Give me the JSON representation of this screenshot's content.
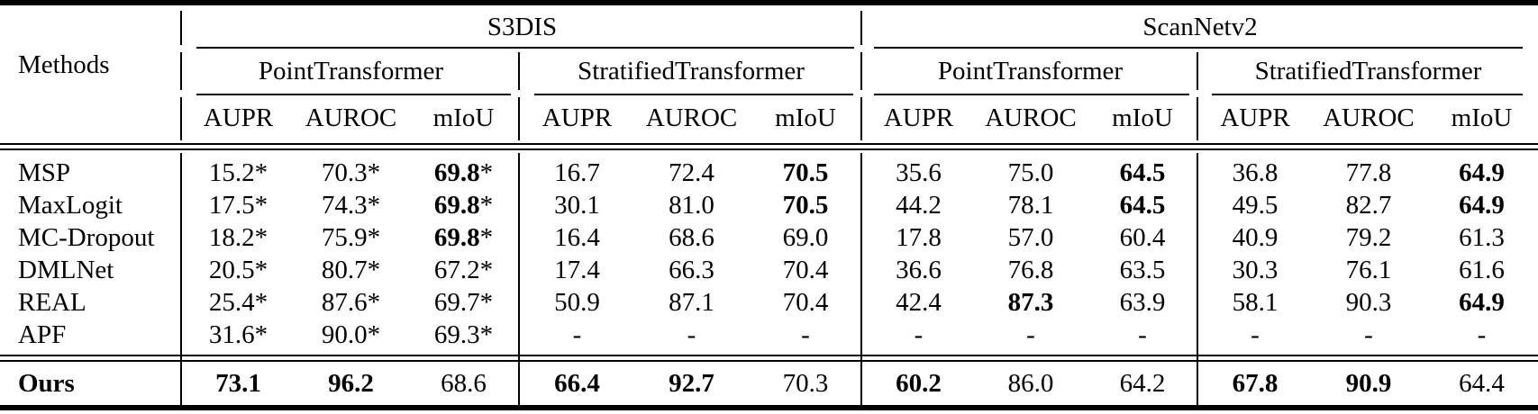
{
  "header": {
    "methods_label": "Methods",
    "datasets": [
      "S3DIS",
      "ScanNetv2"
    ],
    "models": [
      "PointTransformer",
      "StratifiedTransformer",
      "PointTransformer",
      "StratifiedTransformer"
    ],
    "metrics": [
      "AUPR",
      "AUROC",
      "mIoU"
    ]
  },
  "rows": [
    {
      "method": "MSP",
      "ours": false,
      "cells": [
        {
          "v": "15.2",
          "star": true
        },
        {
          "v": "70.3",
          "star": true
        },
        {
          "v": "69.8",
          "bold": true,
          "star": true
        },
        {
          "v": "16.7"
        },
        {
          "v": "72.4"
        },
        {
          "v": "70.5",
          "bold": true
        },
        {
          "v": "35.6"
        },
        {
          "v": "75.0"
        },
        {
          "v": "64.5",
          "bold": true
        },
        {
          "v": "36.8"
        },
        {
          "v": "77.8"
        },
        {
          "v": "64.9",
          "bold": true
        }
      ]
    },
    {
      "method": "MaxLogit",
      "ours": false,
      "cells": [
        {
          "v": "17.5",
          "star": true
        },
        {
          "v": "74.3",
          "star": true
        },
        {
          "v": "69.8",
          "bold": true,
          "star": true
        },
        {
          "v": "30.1"
        },
        {
          "v": "81.0"
        },
        {
          "v": "70.5",
          "bold": true
        },
        {
          "v": "44.2"
        },
        {
          "v": "78.1"
        },
        {
          "v": "64.5",
          "bold": true
        },
        {
          "v": "49.5"
        },
        {
          "v": "82.7"
        },
        {
          "v": "64.9",
          "bold": true
        }
      ]
    },
    {
      "method": "MC-Dropout",
      "ours": false,
      "cells": [
        {
          "v": "18.2",
          "star": true
        },
        {
          "v": "75.9",
          "star": true
        },
        {
          "v": "69.8",
          "bold": true,
          "star": true
        },
        {
          "v": "16.4"
        },
        {
          "v": "68.6"
        },
        {
          "v": "69.0"
        },
        {
          "v": "17.8"
        },
        {
          "v": "57.0"
        },
        {
          "v": "60.4"
        },
        {
          "v": "40.9"
        },
        {
          "v": "79.2"
        },
        {
          "v": "61.3"
        }
      ]
    },
    {
      "method": "DMLNet",
      "ours": false,
      "cells": [
        {
          "v": "20.5",
          "star": true
        },
        {
          "v": "80.7",
          "star": true
        },
        {
          "v": "67.2",
          "star": true
        },
        {
          "v": "17.4"
        },
        {
          "v": "66.3"
        },
        {
          "v": "70.4"
        },
        {
          "v": "36.6"
        },
        {
          "v": "76.8"
        },
        {
          "v": "63.5"
        },
        {
          "v": "30.3"
        },
        {
          "v": "76.1"
        },
        {
          "v": "61.6"
        }
      ]
    },
    {
      "method": "REAL",
      "ours": false,
      "cells": [
        {
          "v": "25.4",
          "star": true
        },
        {
          "v": "87.6",
          "star": true
        },
        {
          "v": "69.7",
          "star": true
        },
        {
          "v": "50.9"
        },
        {
          "v": "87.1"
        },
        {
          "v": "70.4"
        },
        {
          "v": "42.4"
        },
        {
          "v": "87.3",
          "bold": true
        },
        {
          "v": "63.9"
        },
        {
          "v": "58.1"
        },
        {
          "v": "90.3"
        },
        {
          "v": "64.9",
          "bold": true
        }
      ]
    },
    {
      "method": "APF",
      "ours": false,
      "cells": [
        {
          "v": "31.6",
          "star": true
        },
        {
          "v": "90.0",
          "star": true
        },
        {
          "v": "69.3",
          "star": true
        },
        {
          "v": "-"
        },
        {
          "v": "-"
        },
        {
          "v": "-"
        },
        {
          "v": "-"
        },
        {
          "v": "-"
        },
        {
          "v": "-"
        },
        {
          "v": "-"
        },
        {
          "v": "-"
        },
        {
          "v": "-"
        }
      ]
    },
    {
      "method": "Ours",
      "ours": true,
      "cells": [
        {
          "v": "73.1",
          "bold": true
        },
        {
          "v": "96.2",
          "bold": true
        },
        {
          "v": "68.6"
        },
        {
          "v": "66.4",
          "bold": true
        },
        {
          "v": "92.7",
          "bold": true
        },
        {
          "v": "70.3"
        },
        {
          "v": "60.2",
          "bold": true
        },
        {
          "v": "86.0"
        },
        {
          "v": "64.2"
        },
        {
          "v": "67.8",
          "bold": true
        },
        {
          "v": "90.9",
          "bold": true
        },
        {
          "v": "64.4"
        }
      ]
    }
  ],
  "colors": {
    "text": "#000000",
    "background": "#ffffff",
    "rule": "#000000"
  }
}
